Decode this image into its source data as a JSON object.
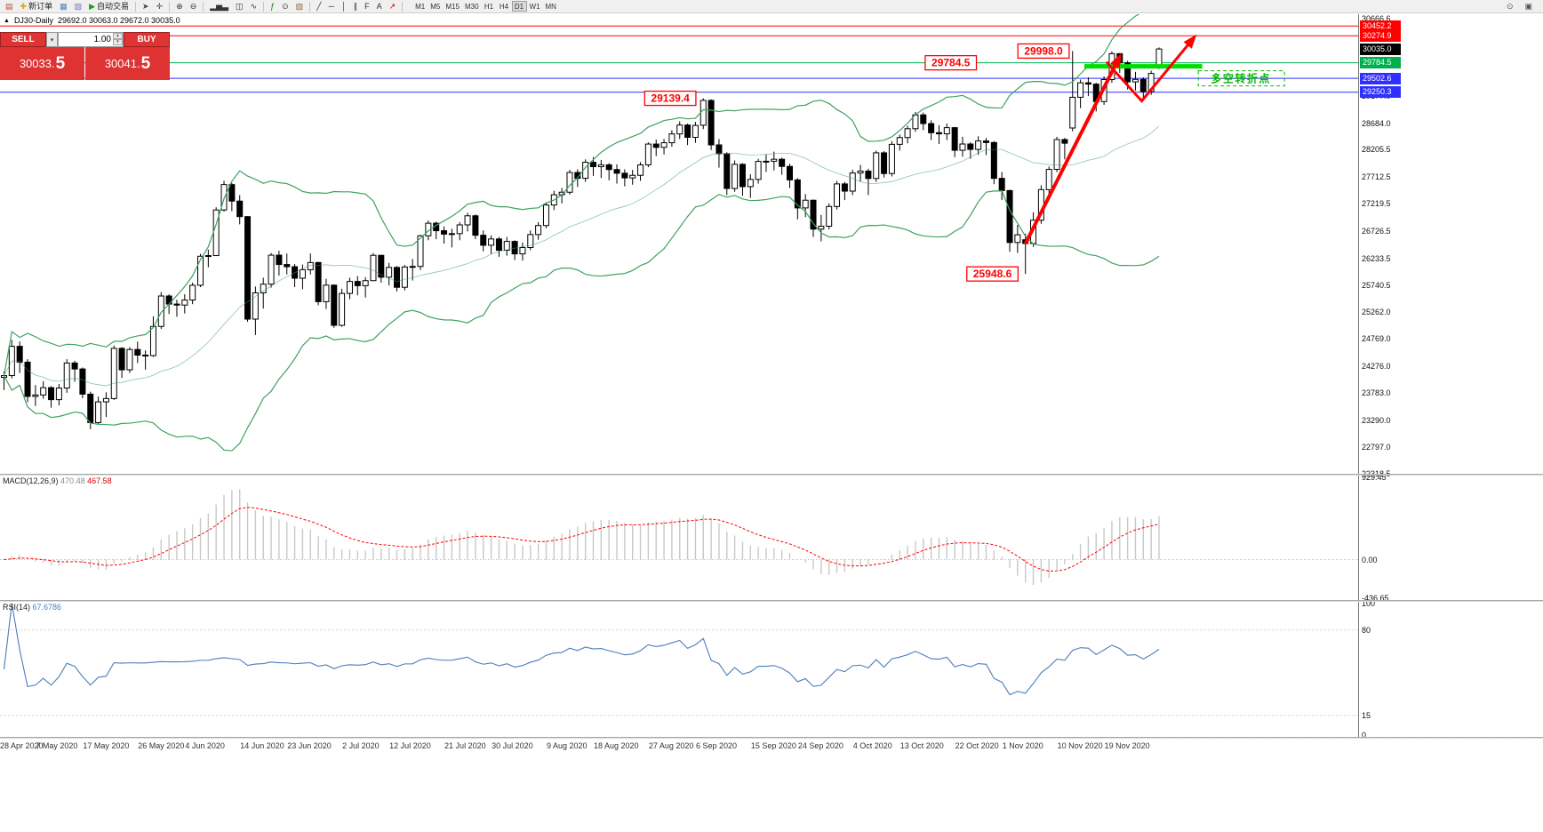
{
  "toolbar": {
    "items": [
      {
        "name": "new-chart-icon",
        "glyph": "▤",
        "color": "#b05030"
      },
      {
        "name": "new-order-button",
        "glyph": "✚",
        "color": "#e0a800",
        "label": "新订单"
      },
      {
        "name": "charts-grid-icon",
        "glyph": "▦",
        "color": "#4f81bd"
      },
      {
        "name": "profiles-icon",
        "glyph": "▧",
        "color": "#7a6fae"
      },
      {
        "name": "auto-trading-button",
        "glyph": "▶",
        "color": "#18a018",
        "label": "自动交易"
      },
      {
        "name": "sep"
      },
      {
        "name": "cursor-icon",
        "glyph": "➤",
        "color": "#444"
      },
      {
        "name": "crosshair-icon",
        "glyph": "✛",
        "color": "#444"
      },
      {
        "name": "sep"
      },
      {
        "name": "zoom-in-icon",
        "glyph": "⊕",
        "color": "#333"
      },
      {
        "name": "zoom-out-icon",
        "glyph": "⊖",
        "color": "#333"
      },
      {
        "name": "sep"
      },
      {
        "name": "bar-chart-icon",
        "glyph": "▂▅▃",
        "color": "#333"
      },
      {
        "name": "candlestick-icon",
        "glyph": "◫",
        "color": "#333"
      },
      {
        "name": "line-chart-icon",
        "glyph": "∿",
        "color": "#333"
      },
      {
        "name": "sep"
      },
      {
        "name": "indicators-icon",
        "glyph": "ƒ",
        "color": "#0a7d0a"
      },
      {
        "name": "periods-icon",
        "glyph": "⊙",
        "color": "#444"
      },
      {
        "name": "templates-icon",
        "glyph": "▨",
        "color": "#8a6d3b"
      },
      {
        "name": "sep"
      },
      {
        "name": "trendline-icon",
        "glyph": "╱",
        "color": "#333"
      },
      {
        "name": "horizontal-line-icon",
        "glyph": "─",
        "color": "#333"
      },
      {
        "name": "vertical-line-icon",
        "glyph": "│",
        "color": "#333"
      },
      {
        "name": "channel-icon",
        "glyph": "∥",
        "color": "#333"
      },
      {
        "name": "fibonacci-icon",
        "glyph": "F",
        "color": "#333"
      },
      {
        "name": "text-icon",
        "glyph": "A",
        "color": "#333"
      },
      {
        "name": "arrow-tool-icon",
        "glyph": "↗",
        "color": "#c00000"
      },
      {
        "name": "sep"
      }
    ],
    "timeframes": [
      "M1",
      "M5",
      "M15",
      "M30",
      "H1",
      "H4",
      "D1",
      "W1",
      "MN"
    ],
    "active_timeframe": "D1",
    "right_icons": [
      {
        "name": "magnifier-icon",
        "glyph": "⊙",
        "color": "#555"
      },
      {
        "name": "window-icon",
        "glyph": "▣",
        "color": "#555"
      }
    ]
  },
  "chart_header": {
    "collapse_icon": "▲",
    "symbol_title": "DJ30-Daily",
    "ohlc": "29692.0 30063.0 29672.0 30035.0"
  },
  "trade_panel": {
    "sell_label": "SELL",
    "buy_label": "BUY",
    "dropdown_icon": "▾",
    "volume": "1.00",
    "spin_up": "▴",
    "spin_down": "▾",
    "sell_price": "30033.",
    "sell_price_big": "5",
    "buy_price": "30041.",
    "buy_price_big": "5"
  },
  "chart_data": {
    "type": "candlestick",
    "symbol": "DJ30",
    "period": "Daily",
    "price_max": 30666.6,
    "price_min": 22318.5,
    "candles": [
      [
        24070,
        24180,
        23840,
        24102
      ],
      [
        24102,
        24750,
        24050,
        24634
      ],
      [
        24634,
        24720,
        24150,
        24346
      ],
      [
        24346,
        24400,
        23620,
        23724
      ],
      [
        23724,
        23930,
        23550,
        23750
      ],
      [
        23750,
        24000,
        23680,
        23883
      ],
      [
        23883,
        23910,
        23520,
        23665
      ],
      [
        23665,
        23950,
        23560,
        23876
      ],
      [
        23876,
        24400,
        23790,
        24331
      ],
      [
        24331,
        24370,
        23990,
        24222
      ],
      [
        24222,
        24250,
        23690,
        23765
      ],
      [
        23765,
        23810,
        23130,
        23248
      ],
      [
        23248,
        23720,
        23220,
        23625
      ],
      [
        23625,
        23800,
        23350,
        23685
      ],
      [
        23685,
        24650,
        23660,
        24597
      ],
      [
        24597,
        24620,
        24060,
        24207
      ],
      [
        24207,
        24620,
        24150,
        24576
      ],
      [
        24576,
        24720,
        24330,
        24474
      ],
      [
        24474,
        24560,
        24210,
        24465
      ],
      [
        24465,
        25180,
        24440,
        24995
      ],
      [
        24995,
        25620,
        24950,
        25548
      ],
      [
        25548,
        25580,
        25220,
        25401
      ],
      [
        25401,
        25480,
        25170,
        25383
      ],
      [
        25383,
        25580,
        25230,
        25475
      ],
      [
        25475,
        25790,
        25400,
        25743
      ],
      [
        25743,
        26310,
        25710,
        26270
      ],
      [
        26270,
        26390,
        26070,
        26282
      ],
      [
        26282,
        27160,
        26280,
        27111
      ],
      [
        27111,
        27640,
        27080,
        27572
      ],
      [
        27572,
        27600,
        27090,
        27272
      ],
      [
        27272,
        27380,
        26850,
        26990
      ],
      [
        26990,
        27000,
        25080,
        25128
      ],
      [
        25128,
        25720,
        24840,
        25605
      ],
      [
        25605,
        25880,
        25320,
        25763
      ],
      [
        25763,
        26330,
        25700,
        26290
      ],
      [
        26290,
        26370,
        25920,
        26120
      ],
      [
        26120,
        26320,
        25940,
        26080
      ],
      [
        26080,
        26130,
        25710,
        25871
      ],
      [
        25871,
        26120,
        25670,
        26025
      ],
      [
        26025,
        26320,
        25940,
        26156
      ],
      [
        26156,
        26170,
        25380,
        25445
      ],
      [
        25445,
        25860,
        25310,
        25745
      ],
      [
        25745,
        25760,
        24970,
        25015
      ],
      [
        25015,
        25680,
        24990,
        25595
      ],
      [
        25595,
        25880,
        25490,
        25812
      ],
      [
        25812,
        25910,
        25560,
        25735
      ],
      [
        25735,
        25890,
        25520,
        25827
      ],
      [
        25827,
        26330,
        25820,
        26287
      ],
      [
        26287,
        26290,
        25790,
        25890
      ],
      [
        25890,
        26150,
        25740,
        26067
      ],
      [
        26067,
        26090,
        25630,
        25706
      ],
      [
        25706,
        26110,
        25650,
        26075
      ],
      [
        26075,
        26220,
        25830,
        26085
      ],
      [
        26085,
        26660,
        26020,
        26642
      ],
      [
        26642,
        26920,
        26560,
        26870
      ],
      [
        26870,
        26900,
        26580,
        26734
      ],
      [
        26734,
        26810,
        26500,
        26672
      ],
      [
        26672,
        26770,
        26430,
        26681
      ],
      [
        26681,
        26890,
        26560,
        26840
      ],
      [
        26840,
        27060,
        26720,
        27005
      ],
      [
        27005,
        27030,
        26580,
        26652
      ],
      [
        26652,
        26740,
        26360,
        26470
      ],
      [
        26470,
        26650,
        26310,
        26584
      ],
      [
        26584,
        26620,
        26260,
        26379
      ],
      [
        26379,
        26620,
        26280,
        26539
      ],
      [
        26539,
        26560,
        26200,
        26313
      ],
      [
        26313,
        26520,
        26190,
        26428
      ],
      [
        26428,
        26740,
        26380,
        26664
      ],
      [
        26664,
        26890,
        26570,
        26828
      ],
      [
        26828,
        27250,
        26780,
        27201
      ],
      [
        27201,
        27460,
        27110,
        27387
      ],
      [
        27387,
        27510,
        27230,
        27433
      ],
      [
        27433,
        27840,
        27390,
        27791
      ],
      [
        27791,
        27850,
        27530,
        27686
      ],
      [
        27686,
        28030,
        27620,
        27977
      ],
      [
        27977,
        28070,
        27730,
        27897
      ],
      [
        27897,
        28020,
        27690,
        27931
      ],
      [
        27931,
        27960,
        27650,
        27845
      ],
      [
        27845,
        27940,
        27590,
        27778
      ],
      [
        27778,
        27850,
        27540,
        27693
      ],
      [
        27693,
        27840,
        27570,
        27740
      ],
      [
        27740,
        27980,
        27640,
        27930
      ],
      [
        27930,
        28340,
        27890,
        28308
      ],
      [
        28308,
        28390,
        28090,
        28248
      ],
      [
        28248,
        28400,
        28120,
        28332
      ],
      [
        28332,
        28560,
        28260,
        28492
      ],
      [
        28492,
        28720,
        28400,
        28654
      ],
      [
        28654,
        28680,
        28290,
        28430
      ],
      [
        28430,
        28710,
        28330,
        28646
      ],
      [
        28650,
        29139,
        28580,
        29101
      ],
      [
        29101,
        29120,
        28200,
        28293
      ],
      [
        28293,
        28400,
        27880,
        28133
      ],
      [
        28133,
        28160,
        27380,
        27501
      ],
      [
        27501,
        28010,
        27440,
        27940
      ],
      [
        27940,
        27960,
        27370,
        27535
      ],
      [
        27535,
        27760,
        27330,
        27666
      ],
      [
        27666,
        28040,
        27590,
        27993
      ],
      [
        27993,
        28120,
        27800,
        27996
      ],
      [
        27996,
        28170,
        27830,
        28032
      ],
      [
        28032,
        28060,
        27750,
        27902
      ],
      [
        27902,
        27950,
        27510,
        27657
      ],
      [
        27657,
        27690,
        26940,
        27148
      ],
      [
        27148,
        27400,
        26980,
        27288
      ],
      [
        27288,
        27300,
        26620,
        26763
      ],
      [
        26763,
        27020,
        26540,
        26815
      ],
      [
        26815,
        27230,
        26760,
        27174
      ],
      [
        27174,
        27640,
        27120,
        27584
      ],
      [
        27584,
        27620,
        27290,
        27453
      ],
      [
        27453,
        27840,
        27380,
        27782
      ],
      [
        27782,
        27930,
        27630,
        27817
      ],
      [
        27817,
        27860,
        27380,
        27683
      ],
      [
        27683,
        28190,
        27620,
        28149
      ],
      [
        28149,
        28180,
        27700,
        27773
      ],
      [
        27773,
        28360,
        27720,
        28303
      ],
      [
        28303,
        28480,
        28190,
        28426
      ],
      [
        28426,
        28640,
        28320,
        28587
      ],
      [
        28587,
        28890,
        28530,
        28838
      ],
      [
        28838,
        28880,
        28560,
        28680
      ],
      [
        28680,
        28740,
        28380,
        28514
      ],
      [
        28514,
        28650,
        28310,
        28494
      ],
      [
        28494,
        28680,
        28380,
        28606
      ],
      [
        28606,
        28620,
        28070,
        28195
      ],
      [
        28195,
        28440,
        28080,
        28309
      ],
      [
        28309,
        28340,
        28040,
        28211
      ],
      [
        28211,
        28450,
        28110,
        28364
      ],
      [
        28364,
        28420,
        28110,
        28336
      ],
      [
        28336,
        28360,
        27580,
        27685
      ],
      [
        27685,
        27800,
        27290,
        27463
      ],
      [
        27463,
        27480,
        26350,
        26520
      ],
      [
        26520,
        26840,
        26330,
        26659
      ],
      [
        26570,
        26680,
        25949,
        26502
      ],
      [
        26502,
        27070,
        26440,
        26925
      ],
      [
        26925,
        27560,
        26860,
        27480
      ],
      [
        27480,
        27900,
        27390,
        27848
      ],
      [
        27848,
        28440,
        27800,
        28390
      ],
      [
        28390,
        28420,
        28030,
        28323
      ],
      [
        28600,
        29998,
        28540,
        29158
      ],
      [
        29158,
        29480,
        28960,
        29421
      ],
      [
        29421,
        29520,
        29180,
        29397
      ],
      [
        29397,
        29420,
        28900,
        29080
      ],
      [
        29080,
        29540,
        29020,
        29480
      ],
      [
        29480,
        29990,
        29420,
        29950
      ],
      [
        29950,
        29960,
        29600,
        29783
      ],
      [
        29783,
        29820,
        29300,
        29438
      ],
      [
        29438,
        29620,
        29280,
        29483
      ],
      [
        29483,
        29520,
        29100,
        29263
      ],
      [
        29263,
        29640,
        29200,
        29591
      ],
      [
        29692,
        30063,
        29672,
        30035
      ]
    ],
    "bollinger": {
      "period": 20,
      "deviation": 2,
      "color": "#3da25f"
    },
    "hlines": [
      {
        "price": 30452.2,
        "label": "30452.2",
        "color": "#ff0000"
      },
      {
        "price": 30274.9,
        "label": "30274.9",
        "color": "#ff0000"
      },
      {
        "price": 29784.5,
        "label": "29784.5",
        "color": "#00b050"
      },
      {
        "price": 29502.6,
        "label": "29502.6",
        "color": "#2f2fff"
      },
      {
        "price": 29250.3,
        "label": "29250.3",
        "color": "#2f2fff"
      }
    ],
    "current_price": 30035.0,
    "current_price_label": "30035.0",
    "scale_labels": [
      "30666.6",
      "29177.0",
      "28684.0",
      "28205.5",
      "27712.5",
      "27219.5",
      "26726.5",
      "26233.5",
      "25740.5",
      "25262.0",
      "24769.0",
      "24276.0",
      "23783.0",
      "23290.0",
      "22797.0",
      "22318.5"
    ],
    "annotations": [
      {
        "text": "29784.5",
        "index": 120.5,
        "price": 29784.5
      },
      {
        "text": "29998.0",
        "index": 132.3,
        "price": 29998.0
      },
      {
        "text": "29139.4",
        "index": 84.8,
        "price": 29139.4
      },
      {
        "text": "25948.6",
        "index": 125.8,
        "price": 25948.6
      }
    ],
    "arrows": [
      {
        "width": 4,
        "points": [
          [
            130,
            26500
          ],
          [
            142,
            29900
          ]
        ]
      },
      {
        "width": 3,
        "points": [
          [
            140.3,
            29800
          ],
          [
            144.8,
            29090
          ],
          [
            151.5,
            30250
          ]
        ]
      }
    ],
    "thick_segment": {
      "from_index": 137.5,
      "to_index": 152.5,
      "price": 29720,
      "color": "#00dd00"
    },
    "turning_point": {
      "text": "多空转折点",
      "index": 152,
      "price": 29640,
      "color": "#00bb00"
    },
    "dates": [
      {
        "label": "28 Apr 2020",
        "index": 0
      },
      {
        "label": "7 May 2020",
        "index": 7
      },
      {
        "label": "17 May 2020",
        "index": 13
      },
      {
        "label": "26 May 2020",
        "index": 20
      },
      {
        "label": "4 Jun 2020",
        "index": 26
      },
      {
        "label": "14 Jun 2020",
        "index": 33
      },
      {
        "label": "23 Jun 2020",
        "index": 39
      },
      {
        "label": "2 Jul 2020",
        "index": 46
      },
      {
        "label": "12 Jul 2020",
        "index": 52
      },
      {
        "label": "21 Jul 2020",
        "index": 59
      },
      {
        "label": "30 Jul 2020",
        "index": 65
      },
      {
        "label": "9 Aug 2020",
        "index": 72
      },
      {
        "label": "18 Aug 2020",
        "index": 78
      },
      {
        "label": "27 Aug 2020",
        "index": 85
      },
      {
        "label": "6 Sep 2020",
        "index": 91
      },
      {
        "label": "15 Sep 2020",
        "index": 98
      },
      {
        "label": "24 Sep 2020",
        "index": 104
      },
      {
        "label": "4 Oct 2020",
        "index": 111
      },
      {
        "label": "13 Oct 2020",
        "index": 117
      },
      {
        "label": "22 Oct 2020",
        "index": 124
      },
      {
        "label": "1 Nov 2020",
        "index": 130
      },
      {
        "label": "10 Nov 2020",
        "index": 137
      },
      {
        "label": "19 Nov 2020",
        "index": 143
      }
    ],
    "macd": {
      "name": "MACD(12,26,9)",
      "value1": "470.48",
      "value2": "467.58",
      "scale_max": 929.45,
      "scale_min": -436.65,
      "scale_labels": [
        {
          "v": 929.45,
          "t": "929.45"
        },
        {
          "v": 0,
          "t": "0.00"
        },
        {
          "v": -436.65,
          "t": "-436.65"
        }
      ],
      "histogram_color": "#c8c8c8",
      "signal_color": "#ff0000"
    },
    "rsi": {
      "name": "RSI(14)",
      "value": "67.6786",
      "levels": [
        80,
        15
      ],
      "scale_labels": [
        {
          "v": 100,
          "t": "100"
        },
        {
          "v": 80,
          "t": "80"
        },
        {
          "v": 15,
          "t": "15"
        },
        {
          "v": 0,
          "t": "0"
        }
      ],
      "line_color": "#4a7ebb"
    }
  }
}
